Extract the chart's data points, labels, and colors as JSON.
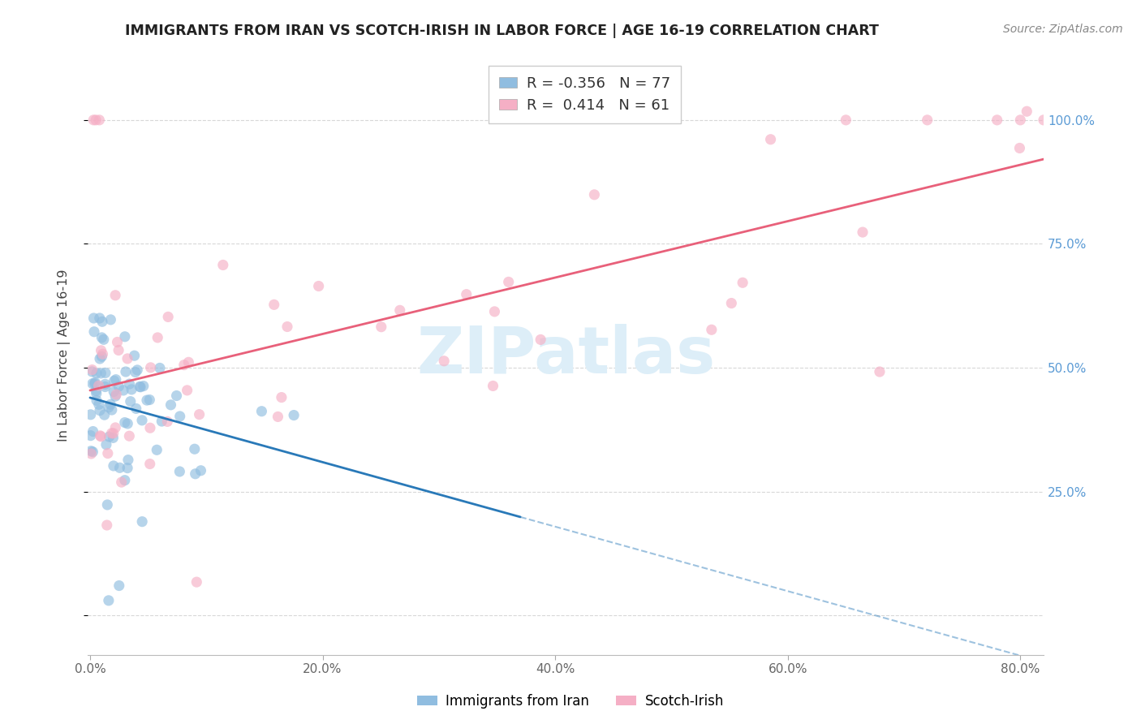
{
  "title": "IMMIGRANTS FROM IRAN VS SCOTCH-IRISH IN LABOR FORCE | AGE 16-19 CORRELATION CHART",
  "source": "Source: ZipAtlas.com",
  "ylabel": "In Labor Force | Age 16-19",
  "iran_R": -0.356,
  "iran_N": 77,
  "scotch_R": 0.414,
  "scotch_N": 61,
  "iran_color": "#90bde0",
  "scotch_color": "#f5afc5",
  "iran_line_color": "#2979b8",
  "scotch_line_color": "#e8607a",
  "watermark_color": "#ddeef8",
  "legend_label_iran": "Immigrants from Iran",
  "legend_label_scotch": "Scotch-Irish",
  "grid_color": "#d8d8d8",
  "title_color": "#222222",
  "right_tick_color": "#5b9bd5",
  "source_color": "#888888",
  "xlim": [
    -0.002,
    0.82
  ],
  "ylim": [
    -0.08,
    1.13
  ],
  "x_ticks": [
    0.0,
    0.2,
    0.4,
    0.6,
    0.8
  ],
  "x_tick_labels": [
    "0.0%",
    "20.0%",
    "40.0%",
    "60.0%",
    "80.0%"
  ],
  "y_ticks": [
    0.0,
    0.25,
    0.5,
    0.75,
    1.0
  ],
  "y_tick_labels_right": [
    "",
    "25.0%",
    "50.0%",
    "75.0%",
    "100.0%"
  ]
}
